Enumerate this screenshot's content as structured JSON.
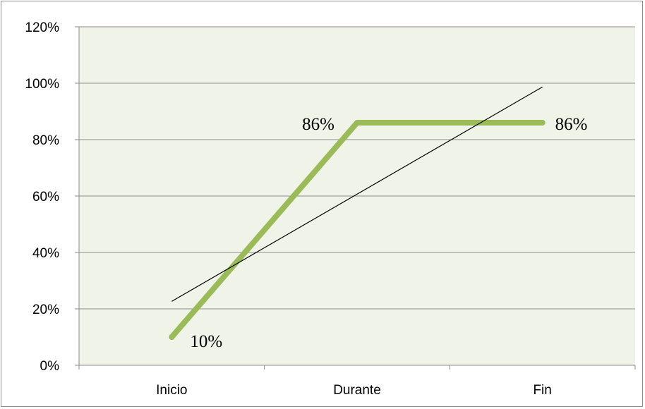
{
  "chart_data": {
    "type": "line",
    "categories": [
      "Inicio",
      "Durante",
      "Fin"
    ],
    "series": [
      {
        "values": [
          0.1,
          0.86,
          0.86
        ],
        "data_labels": [
          "10%",
          "86%",
          "86%"
        ],
        "color": "#9bbb59"
      }
    ],
    "trendline": {
      "type": "linear",
      "color": "#000000"
    },
    "ylim": [
      0,
      1.2
    ],
    "yticks": [
      0,
      0.2,
      0.4,
      0.6,
      0.8,
      1.0,
      1.2
    ],
    "ytick_labels": [
      "0%",
      "20%",
      "40%",
      "60%",
      "80%",
      "100%",
      "120%"
    ],
    "grid": true,
    "legend": "none",
    "plot_background": "#eff3e8",
    "gridline_color": "#8c8c8c",
    "title": "",
    "xlabel": "",
    "ylabel": ""
  }
}
